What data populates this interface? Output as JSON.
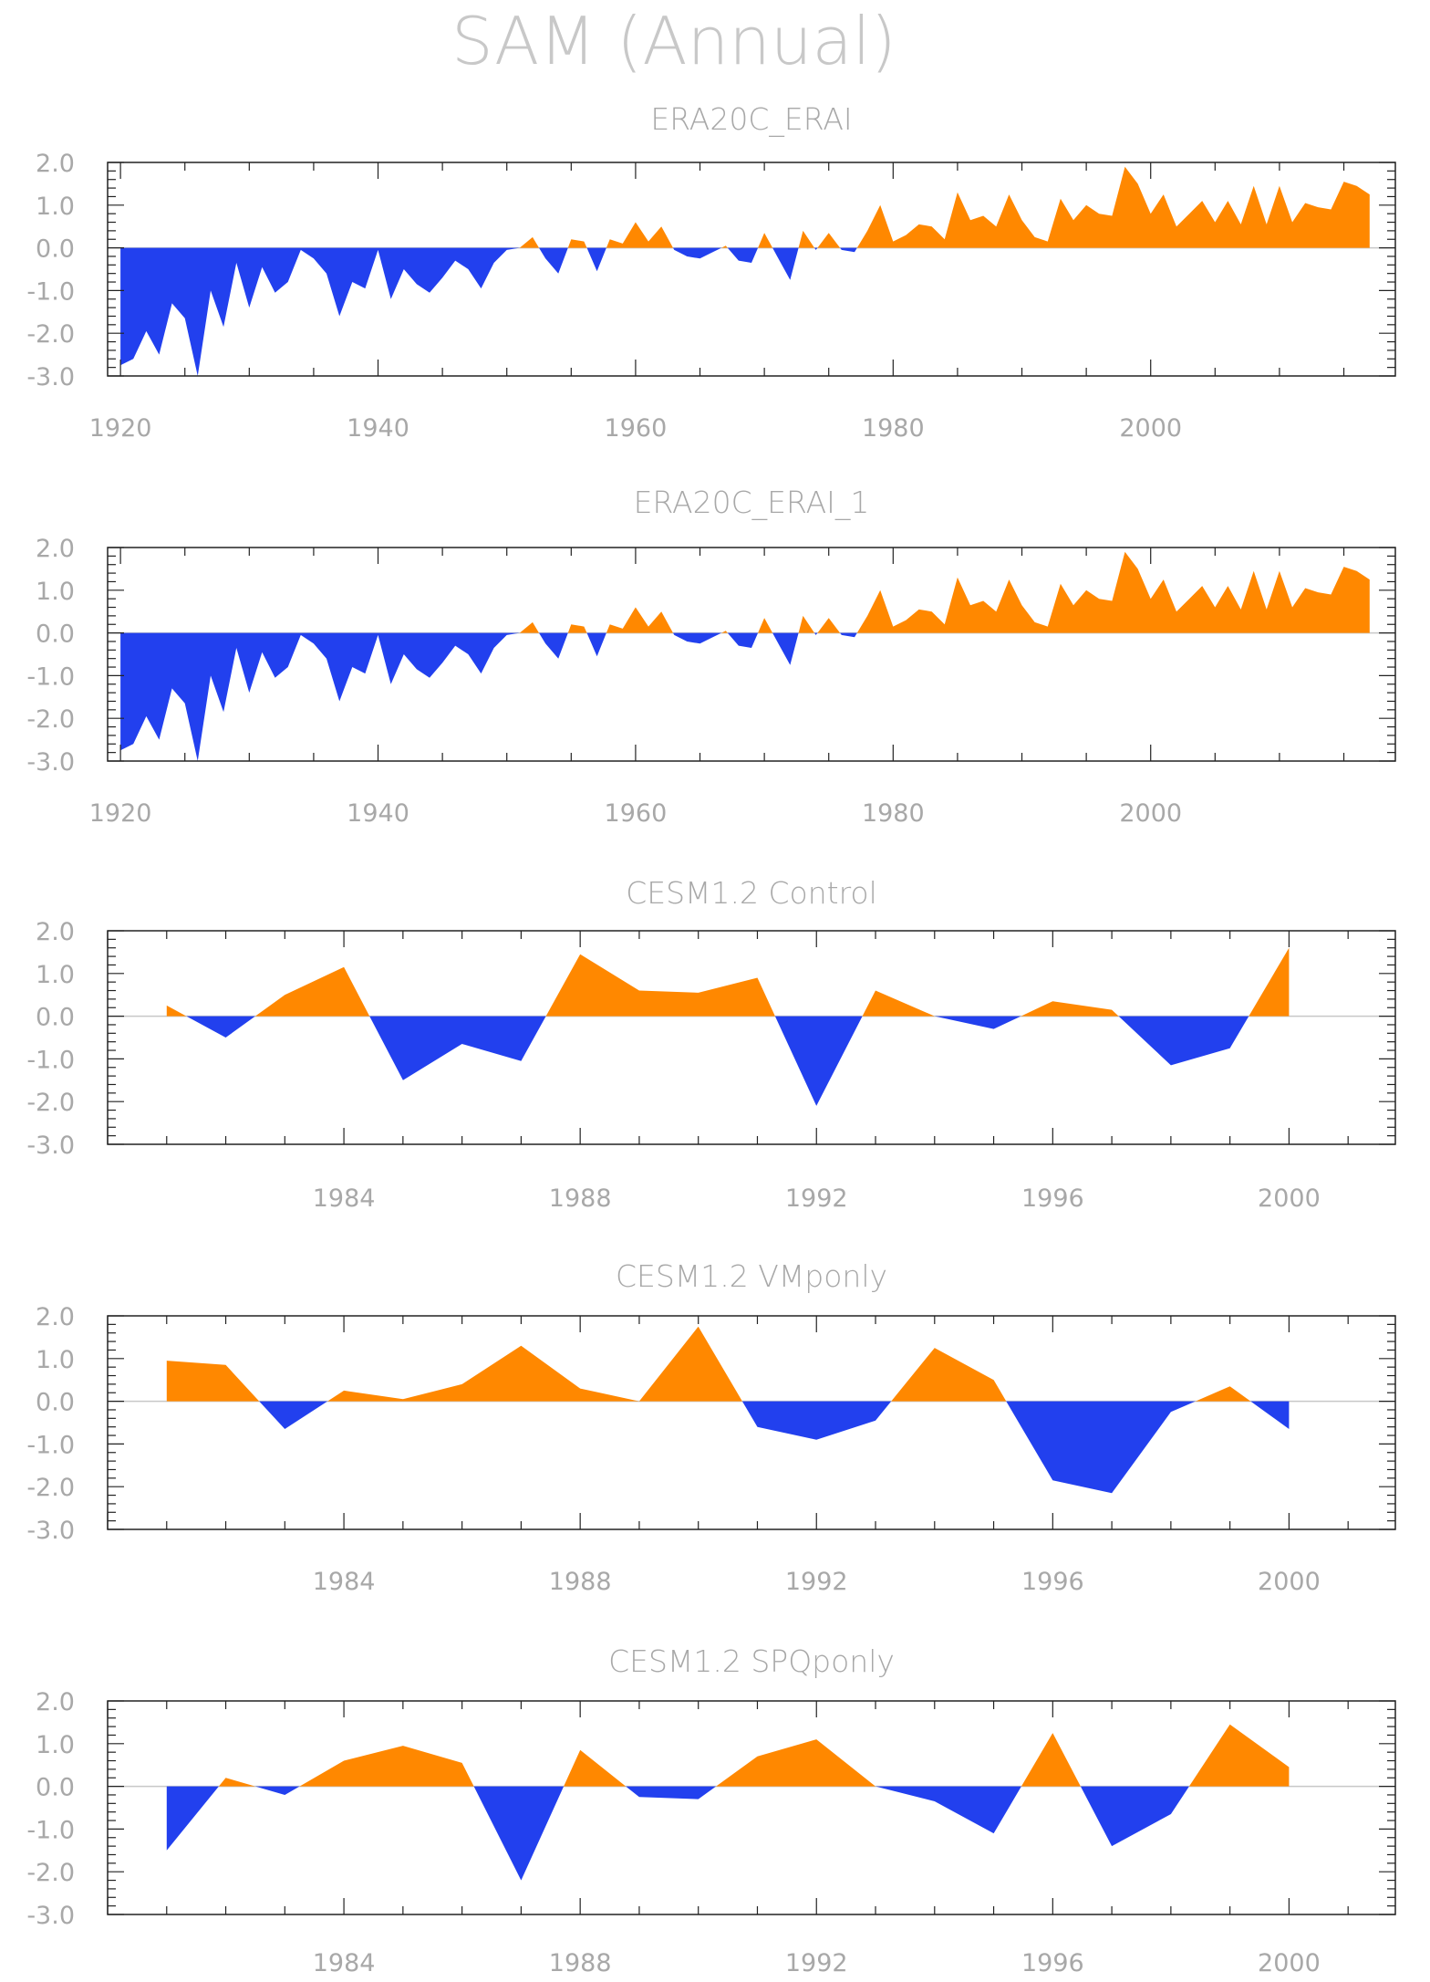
{
  "figure": {
    "title": "SAM (Annual)"
  },
  "colors": {
    "positive": "#ff8800",
    "negative": "#2240ee",
    "axis": "#222222",
    "text": "#a8a8a8",
    "zero_line": "#c8c8c8"
  },
  "chart_data": [
    {
      "type": "area",
      "title": "ERA20C_ERAI",
      "xlabel": "",
      "ylabel": "",
      "x": [
        1920,
        1921,
        1922,
        1923,
        1924,
        1925,
        1926,
        1927,
        1928,
        1929,
        1930,
        1931,
        1932,
        1933,
        1934,
        1935,
        1936,
        1937,
        1938,
        1939,
        1940,
        1941,
        1942,
        1943,
        1944,
        1945,
        1946,
        1947,
        1948,
        1949,
        1950,
        1951,
        1952,
        1953,
        1954,
        1955,
        1956,
        1957,
        1958,
        1959,
        1960,
        1961,
        1962,
        1963,
        1964,
        1965,
        1966,
        1967,
        1968,
        1969,
        1970,
        1971,
        1972,
        1973,
        1974,
        1975,
        1976,
        1977,
        1978,
        1979,
        1980,
        1981,
        1982,
        1983,
        1984,
        1985,
        1986,
        1987,
        1988,
        1989,
        1990,
        1991,
        1992,
        1993,
        1994,
        1995,
        1996,
        1997,
        1998,
        1999,
        2000,
        2001,
        2002,
        2003,
        2004,
        2005,
        2006,
        2007,
        2008,
        2009,
        2010,
        2011,
        2012,
        2013,
        2014,
        2015,
        2016,
        2017
      ],
      "values": [
        -2.75,
        -2.6,
        -1.95,
        -2.5,
        -1.3,
        -1.65,
        -3.0,
        -1.0,
        -1.85,
        -0.35,
        -1.4,
        -0.45,
        -1.05,
        -0.8,
        -0.05,
        -0.25,
        -0.6,
        -1.6,
        -0.8,
        -0.95,
        -0.05,
        -1.2,
        -0.5,
        -0.85,
        -1.05,
        -0.7,
        -0.3,
        -0.5,
        -0.95,
        -0.35,
        -0.05,
        0.0,
        0.25,
        -0.25,
        -0.6,
        0.2,
        0.15,
        -0.55,
        0.2,
        0.1,
        0.6,
        0.15,
        0.5,
        -0.05,
        -0.2,
        -0.25,
        -0.1,
        0.05,
        -0.3,
        -0.35,
        0.35,
        -0.2,
        -0.75,
        0.4,
        -0.05,
        0.35,
        -0.05,
        -0.1,
        0.4,
        1.0,
        0.15,
        0.3,
        0.55,
        0.5,
        0.2,
        1.3,
        0.65,
        0.75,
        0.5,
        1.25,
        0.65,
        0.25,
        0.15,
        1.15,
        0.65,
        1.0,
        0.8,
        0.75,
        1.9,
        1.5,
        0.8,
        1.25,
        0.5,
        0.8,
        1.1,
        0.6,
        1.1,
        0.55,
        1.45,
        0.55,
        1.45,
        0.6,
        1.05,
        0.95,
        0.9,
        1.55,
        1.45,
        1.25
      ],
      "xlim": [
        1919,
        2019
      ],
      "ylim": [
        -3.0,
        2.0
      ],
      "xticks": [
        "1920",
        "1940",
        "1960",
        "1980",
        "2000"
      ],
      "yticks": [
        "2.0",
        "1.0",
        "0.0",
        "-1.0",
        "-2.0",
        "-3.0"
      ],
      "grid": false
    },
    {
      "type": "area",
      "title": "ERA20C_ERAI_1",
      "xlabel": "",
      "ylabel": "",
      "x": [
        1920,
        1921,
        1922,
        1923,
        1924,
        1925,
        1926,
        1927,
        1928,
        1929,
        1930,
        1931,
        1932,
        1933,
        1934,
        1935,
        1936,
        1937,
        1938,
        1939,
        1940,
        1941,
        1942,
        1943,
        1944,
        1945,
        1946,
        1947,
        1948,
        1949,
        1950,
        1951,
        1952,
        1953,
        1954,
        1955,
        1956,
        1957,
        1958,
        1959,
        1960,
        1961,
        1962,
        1963,
        1964,
        1965,
        1966,
        1967,
        1968,
        1969,
        1970,
        1971,
        1972,
        1973,
        1974,
        1975,
        1976,
        1977,
        1978,
        1979,
        1980,
        1981,
        1982,
        1983,
        1984,
        1985,
        1986,
        1987,
        1988,
        1989,
        1990,
        1991,
        1992,
        1993,
        1994,
        1995,
        1996,
        1997,
        1998,
        1999,
        2000,
        2001,
        2002,
        2003,
        2004,
        2005,
        2006,
        2007,
        2008,
        2009,
        2010,
        2011,
        2012,
        2013,
        2014,
        2015,
        2016,
        2017
      ],
      "values": [
        -2.75,
        -2.6,
        -1.95,
        -2.5,
        -1.3,
        -1.65,
        -3.0,
        -1.0,
        -1.85,
        -0.35,
        -1.4,
        -0.45,
        -1.05,
        -0.8,
        -0.05,
        -0.25,
        -0.6,
        -1.6,
        -0.8,
        -0.95,
        -0.05,
        -1.2,
        -0.5,
        -0.85,
        -1.05,
        -0.7,
        -0.3,
        -0.5,
        -0.95,
        -0.35,
        -0.05,
        0.0,
        0.25,
        -0.25,
        -0.6,
        0.2,
        0.15,
        -0.55,
        0.2,
        0.1,
        0.6,
        0.15,
        0.5,
        -0.05,
        -0.2,
        -0.25,
        -0.1,
        0.05,
        -0.3,
        -0.35,
        0.35,
        -0.2,
        -0.75,
        0.4,
        -0.05,
        0.35,
        -0.05,
        -0.1,
        0.4,
        1.0,
        0.15,
        0.3,
        0.55,
        0.5,
        0.2,
        1.3,
        0.65,
        0.75,
        0.5,
        1.25,
        0.65,
        0.25,
        0.15,
        1.15,
        0.65,
        1.0,
        0.8,
        0.75,
        1.9,
        1.5,
        0.8,
        1.25,
        0.5,
        0.8,
        1.1,
        0.6,
        1.1,
        0.55,
        1.45,
        0.55,
        1.45,
        0.6,
        1.05,
        0.95,
        0.9,
        1.55,
        1.45,
        1.25
      ],
      "xlim": [
        1919,
        2019
      ],
      "ylim": [
        -3.0,
        2.0
      ],
      "xticks": [
        "1920",
        "1940",
        "1960",
        "1980",
        "2000"
      ],
      "yticks": [
        "2.0",
        "1.0",
        "0.0",
        "-1.0",
        "-2.0",
        "-3.0"
      ],
      "grid": false
    },
    {
      "type": "area",
      "title": "CESM1.2 Control",
      "xlabel": "",
      "ylabel": "",
      "x": [
        1981,
        1982,
        1983,
        1984,
        1985,
        1986,
        1987,
        1988,
        1989,
        1990,
        1991,
        1992,
        1993,
        1994,
        1995,
        1996,
        1997,
        1998,
        1999,
        2000
      ],
      "values": [
        0.25,
        -0.5,
        0.5,
        1.15,
        -1.5,
        -0.65,
        -1.05,
        1.45,
        0.6,
        0.55,
        0.9,
        -2.1,
        0.6,
        0.0,
        -0.3,
        0.35,
        0.15,
        -1.15,
        -0.75,
        1.6
      ],
      "xlim": [
        1980,
        2001.8
      ],
      "ylim": [
        -3.0,
        2.0
      ],
      "xticks": [
        "1984",
        "1988",
        "1992",
        "1996",
        "2000"
      ],
      "yticks": [
        "2.0",
        "1.0",
        "0.0",
        "-1.0",
        "-2.0",
        "-3.0"
      ],
      "grid": false
    },
    {
      "type": "area",
      "title": "CESM1.2 VMponly",
      "xlabel": "",
      "ylabel": "",
      "x": [
        1981,
        1982,
        1983,
        1984,
        1985,
        1986,
        1987,
        1988,
        1989,
        1990,
        1991,
        1992,
        1993,
        1994,
        1995,
        1996,
        1997,
        1998,
        1999,
        2000
      ],
      "values": [
        0.95,
        0.85,
        -0.65,
        0.25,
        0.05,
        0.4,
        1.3,
        0.3,
        0.0,
        1.75,
        -0.6,
        -0.9,
        -0.45,
        1.25,
        0.5,
        -1.85,
        -2.15,
        -0.25,
        0.35,
        -0.65
      ],
      "xlim": [
        1980,
        2001.8
      ],
      "ylim": [
        -3.0,
        2.0
      ],
      "xticks": [
        "1984",
        "1988",
        "1992",
        "1996",
        "2000"
      ],
      "yticks": [
        "2.0",
        "1.0",
        "0.0",
        "-1.0",
        "-2.0",
        "-3.0"
      ],
      "grid": false
    },
    {
      "type": "area",
      "title": "CESM1.2 SPQponly",
      "xlabel": "",
      "ylabel": "",
      "x": [
        1981,
        1982,
        1983,
        1984,
        1985,
        1986,
        1987,
        1988,
        1989,
        1990,
        1991,
        1992,
        1993,
        1994,
        1995,
        1996,
        1997,
        1998,
        1999,
        2000
      ],
      "values": [
        -1.5,
        0.2,
        -0.2,
        0.6,
        0.95,
        0.55,
        -2.2,
        0.85,
        -0.25,
        -0.3,
        0.7,
        1.1,
        0.0,
        -0.35,
        -1.1,
        1.25,
        -1.4,
        -0.65,
        1.45,
        0.45
      ],
      "xlim": [
        1980,
        2001.8
      ],
      "ylim": [
        -3.0,
        2.0
      ],
      "xticks": [
        "1984",
        "1988",
        "1992",
        "1996",
        "2000"
      ],
      "yticks": [
        "2.0",
        "1.0",
        "0.0",
        "-1.0",
        "-2.0",
        "-3.0"
      ],
      "grid": false
    }
  ]
}
